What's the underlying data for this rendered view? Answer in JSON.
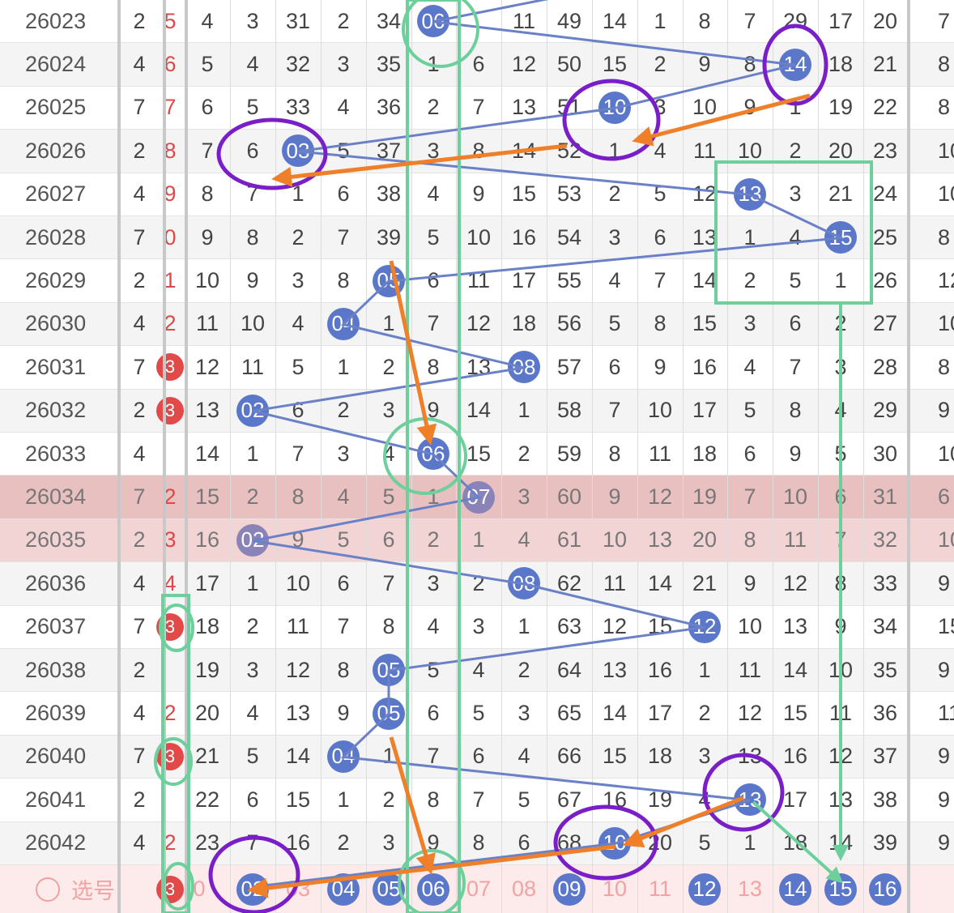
{
  "pick_label": "选号",
  "rows": [
    {
      "issue": "26023",
      "sum": "2",
      "mark": "5",
      "cells": [
        "4",
        "3",
        "31",
        "2",
        "34",
        "06",
        "",
        "11",
        "49",
        "14",
        "1",
        "8",
        "7",
        "29",
        "17",
        "20"
      ],
      "tail": "7"
    },
    {
      "issue": "26024",
      "sum": "4",
      "mark": "6",
      "cells": [
        "5",
        "4",
        "32",
        "3",
        "35",
        "1",
        "6",
        "12",
        "50",
        "15",
        "2",
        "9",
        "8",
        "14",
        "18",
        "21"
      ],
      "tail": "8"
    },
    {
      "issue": "26025",
      "sum": "7",
      "mark": "7",
      "cells": [
        "6",
        "5",
        "33",
        "4",
        "36",
        "2",
        "7",
        "13",
        "51",
        "10",
        "3",
        "10",
        "9",
        "1",
        "19",
        "22"
      ],
      "tail": "8"
    },
    {
      "issue": "26026",
      "sum": "2",
      "mark": "8",
      "cells": [
        "7",
        "6",
        "03",
        "5",
        "37",
        "3",
        "8",
        "14",
        "52",
        "1",
        "4",
        "11",
        "10",
        "2",
        "20",
        "23"
      ],
      "tail": "10"
    },
    {
      "issue": "26027",
      "sum": "4",
      "mark": "9",
      "cells": [
        "8",
        "7",
        "1",
        "6",
        "38",
        "4",
        "9",
        "15",
        "53",
        "2",
        "5",
        "12",
        "13",
        "3",
        "21",
        "24"
      ],
      "tail": "10"
    },
    {
      "issue": "26028",
      "sum": "7",
      "mark": "0",
      "cells": [
        "9",
        "8",
        "2",
        "7",
        "39",
        "5",
        "10",
        "16",
        "54",
        "3",
        "6",
        "13",
        "1",
        "4",
        "15",
        "25"
      ],
      "tail": "8"
    },
    {
      "issue": "26029",
      "sum": "2",
      "mark": "1",
      "cells": [
        "10",
        "9",
        "3",
        "8",
        "05",
        "6",
        "11",
        "17",
        "55",
        "4",
        "7",
        "14",
        "2",
        "5",
        "1",
        "26"
      ],
      "tail": "12"
    },
    {
      "issue": "26030",
      "sum": "4",
      "mark": "2",
      "cells": [
        "11",
        "10",
        "4",
        "04",
        "1",
        "7",
        "12",
        "18",
        "56",
        "5",
        "8",
        "15",
        "3",
        "6",
        "2",
        "27"
      ],
      "tail": "10"
    },
    {
      "issue": "26031",
      "sum": "7",
      "mark": "3",
      "cells": [
        "12",
        "11",
        "5",
        "1",
        "2",
        "8",
        "13",
        "08",
        "57",
        "6",
        "9",
        "16",
        "4",
        "7",
        "3",
        "28"
      ],
      "tail": "8"
    },
    {
      "issue": "26032",
      "sum": "2",
      "mark": "3",
      "cells": [
        "13",
        "02",
        "6",
        "2",
        "3",
        "9",
        "14",
        "1",
        "58",
        "7",
        "10",
        "17",
        "5",
        "8",
        "4",
        "29"
      ],
      "tail": "9"
    },
    {
      "issue": "26033",
      "sum": "4",
      "mark": "",
      "cells": [
        "14",
        "1",
        "7",
        "3",
        "4",
        "06",
        "15",
        "2",
        "59",
        "8",
        "11",
        "18",
        "6",
        "9",
        "5",
        "30"
      ],
      "tail": "10"
    },
    {
      "issue": "26034",
      "sum": "7",
      "mark": "2",
      "cells": [
        "15",
        "2",
        "8",
        "4",
        "5",
        "1",
        "07",
        "3",
        "60",
        "9",
        "12",
        "19",
        "7",
        "10",
        "6",
        "31"
      ],
      "tail": "6"
    },
    {
      "issue": "26035",
      "sum": "2",
      "mark": "3",
      "cells": [
        "16",
        "02",
        "9",
        "5",
        "6",
        "2",
        "1",
        "4",
        "61",
        "10",
        "13",
        "20",
        "8",
        "11",
        "7",
        "32"
      ],
      "tail": "10"
    },
    {
      "issue": "26036",
      "sum": "4",
      "mark": "4",
      "cells": [
        "17",
        "1",
        "10",
        "6",
        "7",
        "3",
        "2",
        "08",
        "62",
        "11",
        "14",
        "21",
        "9",
        "12",
        "8",
        "33"
      ],
      "tail": "9"
    },
    {
      "issue": "26037",
      "sum": "7",
      "mark": "3",
      "cells": [
        "18",
        "2",
        "11",
        "7",
        "8",
        "4",
        "3",
        "1",
        "63",
        "12",
        "15",
        "12",
        "10",
        "13",
        "9",
        "34"
      ],
      "tail": "15"
    },
    {
      "issue": "26038",
      "sum": "2",
      "mark": "",
      "cells": [
        "19",
        "3",
        "12",
        "8",
        "05",
        "5",
        "4",
        "2",
        "64",
        "13",
        "16",
        "1",
        "11",
        "14",
        "10",
        "35"
      ],
      "tail": "9"
    },
    {
      "issue": "26039",
      "sum": "4",
      "mark": "2",
      "cells": [
        "20",
        "4",
        "13",
        "9",
        "05",
        "6",
        "5",
        "3",
        "65",
        "14",
        "17",
        "2",
        "12",
        "15",
        "11",
        "36"
      ],
      "tail": "11"
    },
    {
      "issue": "26040",
      "sum": "7",
      "mark": "3",
      "cells": [
        "21",
        "5",
        "14",
        "04",
        "1",
        "7",
        "6",
        "4",
        "66",
        "15",
        "18",
        "3",
        "13",
        "16",
        "12",
        "37"
      ],
      "tail": "9"
    },
    {
      "issue": "26041",
      "sum": "2",
      "mark": "",
      "cells": [
        "22",
        "6",
        "15",
        "1",
        "2",
        "8",
        "7",
        "5",
        "67",
        "16",
        "19",
        "4",
        "13",
        "17",
        "13",
        "38"
      ],
      "tail": "9"
    },
    {
      "issue": "26042",
      "sum": "4",
      "mark": "2",
      "cells": [
        "23",
        "7",
        "16",
        "2",
        "3",
        "9",
        "8",
        "6",
        "68",
        "10",
        "20",
        "5",
        "1",
        "18",
        "14",
        "39"
      ],
      "tail": "9"
    }
  ],
  "footer": {
    "mark": "3",
    "cells": [
      "0",
      "02",
      "03",
      "04",
      "05",
      "06",
      "07",
      "08",
      "09",
      "10",
      "11",
      "12",
      "13",
      "14",
      "15",
      "16"
    ]
  },
  "colors": {
    "ball": "#5b77c9",
    "red": "#e14a48",
    "green": "#6dcf9c",
    "purple": "#7a1fc8",
    "orange": "#ef7f28",
    "link": "#6a81c8"
  }
}
